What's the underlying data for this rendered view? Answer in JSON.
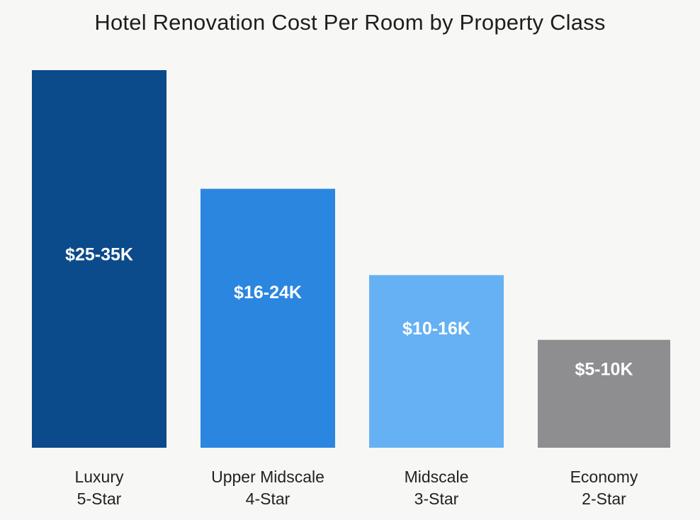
{
  "chart_data": {
    "type": "bar",
    "title": "Hotel Renovation Cost Per Room by Property Class",
    "xlabel": "",
    "ylabel": "",
    "ylim": [
      0,
      35
    ],
    "grid": false,
    "categories": [
      {
        "line1": "Luxury",
        "line2": "5-Star"
      },
      {
        "line1": "Upper Midscale",
        "line2": "4-Star"
      },
      {
        "line1": "Midscale",
        "line2": "3-Star"
      },
      {
        "line1": "Economy",
        "line2": "2-Star"
      }
    ],
    "ranges": [
      {
        "low": 25,
        "high": 35
      },
      {
        "low": 16,
        "high": 24
      },
      {
        "low": 10,
        "high": 16
      },
      {
        "low": 5,
        "high": 10
      }
    ],
    "values": [
      35,
      24,
      16,
      10
    ],
    "data_labels": [
      "$25-35K",
      "$16-24K",
      "$10-16K",
      "$5-10K"
    ],
    "colors": [
      "#0b4a8b",
      "#2b86e0",
      "#66b1f3",
      "#8e8e90"
    ]
  }
}
